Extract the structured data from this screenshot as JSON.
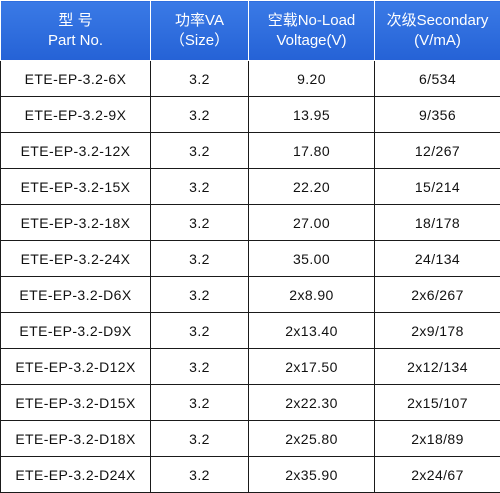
{
  "header": {
    "col1": {
      "line1": "型  号",
      "line2": "Part No."
    },
    "col2": {
      "line1": "功率VA",
      "line2": "（Size）"
    },
    "col3": {
      "line1": "空载No-Load",
      "line2": "Voltage(V)"
    },
    "col4": {
      "line1": "次级Secondary",
      "line2": "(V/mA)"
    }
  },
  "colors": {
    "header_bg": "#2a67d8",
    "header_text": "#ffffff",
    "grid": "#1a1a1a"
  },
  "rows": [
    {
      "part": "ETE-EP-3.2-6X",
      "size": "3.2",
      "voltage": "9.20",
      "secondary": "6/534"
    },
    {
      "part": "ETE-EP-3.2-9X",
      "size": "3.2",
      "voltage": "13.95",
      "secondary": "9/356"
    },
    {
      "part": "ETE-EP-3.2-12X",
      "size": "3.2",
      "voltage": "17.80",
      "secondary": "12/267"
    },
    {
      "part": "ETE-EP-3.2-15X",
      "size": "3.2",
      "voltage": "22.20",
      "secondary": "15/214"
    },
    {
      "part": "ETE-EP-3.2-18X",
      "size": "3.2",
      "voltage": "27.00",
      "secondary": "18/178"
    },
    {
      "part": "ETE-EP-3.2-24X",
      "size": "3.2",
      "voltage": "35.00",
      "secondary": "24/134"
    },
    {
      "part": "ETE-EP-3.2-D6X",
      "size": "3.2",
      "voltage": "2x8.90",
      "secondary": "2x6/267"
    },
    {
      "part": "ETE-EP-3.2-D9X",
      "size": "3.2",
      "voltage": "2x13.40",
      "secondary": "2x9/178"
    },
    {
      "part": "ETE-EP-3.2-D12X",
      "size": "3.2",
      "voltage": "2x17.50",
      "secondary": "2x12/134"
    },
    {
      "part": "ETE-EP-3.2-D15X",
      "size": "3.2",
      "voltage": "2x22.30",
      "secondary": "2x15/107"
    },
    {
      "part": "ETE-EP-3.2-D18X",
      "size": "3.2",
      "voltage": "2x25.80",
      "secondary": "2x18/89"
    },
    {
      "part": "ETE-EP-3.2-D24X",
      "size": "3.2",
      "voltage": "2x35.90",
      "secondary": "2x24/67"
    }
  ]
}
